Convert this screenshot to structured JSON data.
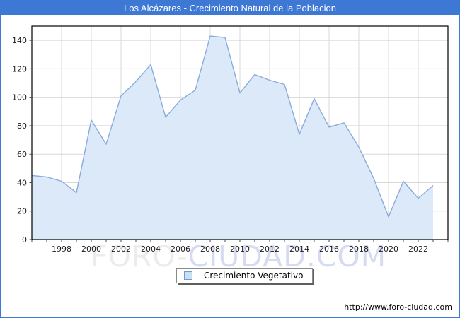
{
  "page": {
    "title": "Los Alcázares - Crecimiento Natural de la Poblacion",
    "footer_url": "http://www.foro-ciudad.com",
    "watermark": {
      "part1": "FORO-",
      "part2": "CIUDAD.COM"
    }
  },
  "legend": {
    "label": "Crecimiento Vegetativo"
  },
  "colors": {
    "titlebar_bg": "#3d78d4",
    "frame_border": "#3d78d4",
    "line": "#89abdd",
    "fill": "#dce9f8",
    "gridline": "#d8d8d8",
    "axis_border": "#000000",
    "tick": "#444444",
    "label_text": "#1a1a1a",
    "legend_swatch_fill": "#c9dff4",
    "legend_swatch_border": "#6f9bd2",
    "watermark_gray": "#ececec",
    "watermark_blue": "#d6dbf2"
  },
  "chart_data": {
    "type": "area",
    "title": "Los Alcázares - Crecimiento Natural de la Poblacion",
    "series": [
      {
        "name": "Crecimiento Vegetativo",
        "x": [
          1996,
          1997,
          1998,
          1999,
          2000,
          2001,
          2002,
          2003,
          2004,
          2005,
          2006,
          2007,
          2008,
          2009,
          2010,
          2011,
          2012,
          2013,
          2014,
          2015,
          2016,
          2017,
          2018,
          2019,
          2020,
          2021,
          2022,
          2023
        ],
        "values": [
          45,
          44,
          41,
          33,
          84,
          67,
          101,
          111,
          123,
          86,
          98,
          105,
          143,
          142,
          103,
          116,
          112,
          109,
          74,
          99,
          79,
          82,
          65,
          43,
          16,
          41,
          29,
          38
        ]
      }
    ],
    "xlabel": "",
    "ylabel": "",
    "xlim": [
      1996,
      2024
    ],
    "ylim": [
      0,
      150
    ],
    "y_ticks": [
      0,
      20,
      40,
      60,
      80,
      100,
      120,
      140
    ],
    "x_tick_years": [
      1998,
      2000,
      2002,
      2004,
      2006,
      2008,
      2010,
      2012,
      2014,
      2016,
      2018,
      2020,
      2022
    ],
    "grid": true,
    "legend_position": "bottom-center"
  }
}
